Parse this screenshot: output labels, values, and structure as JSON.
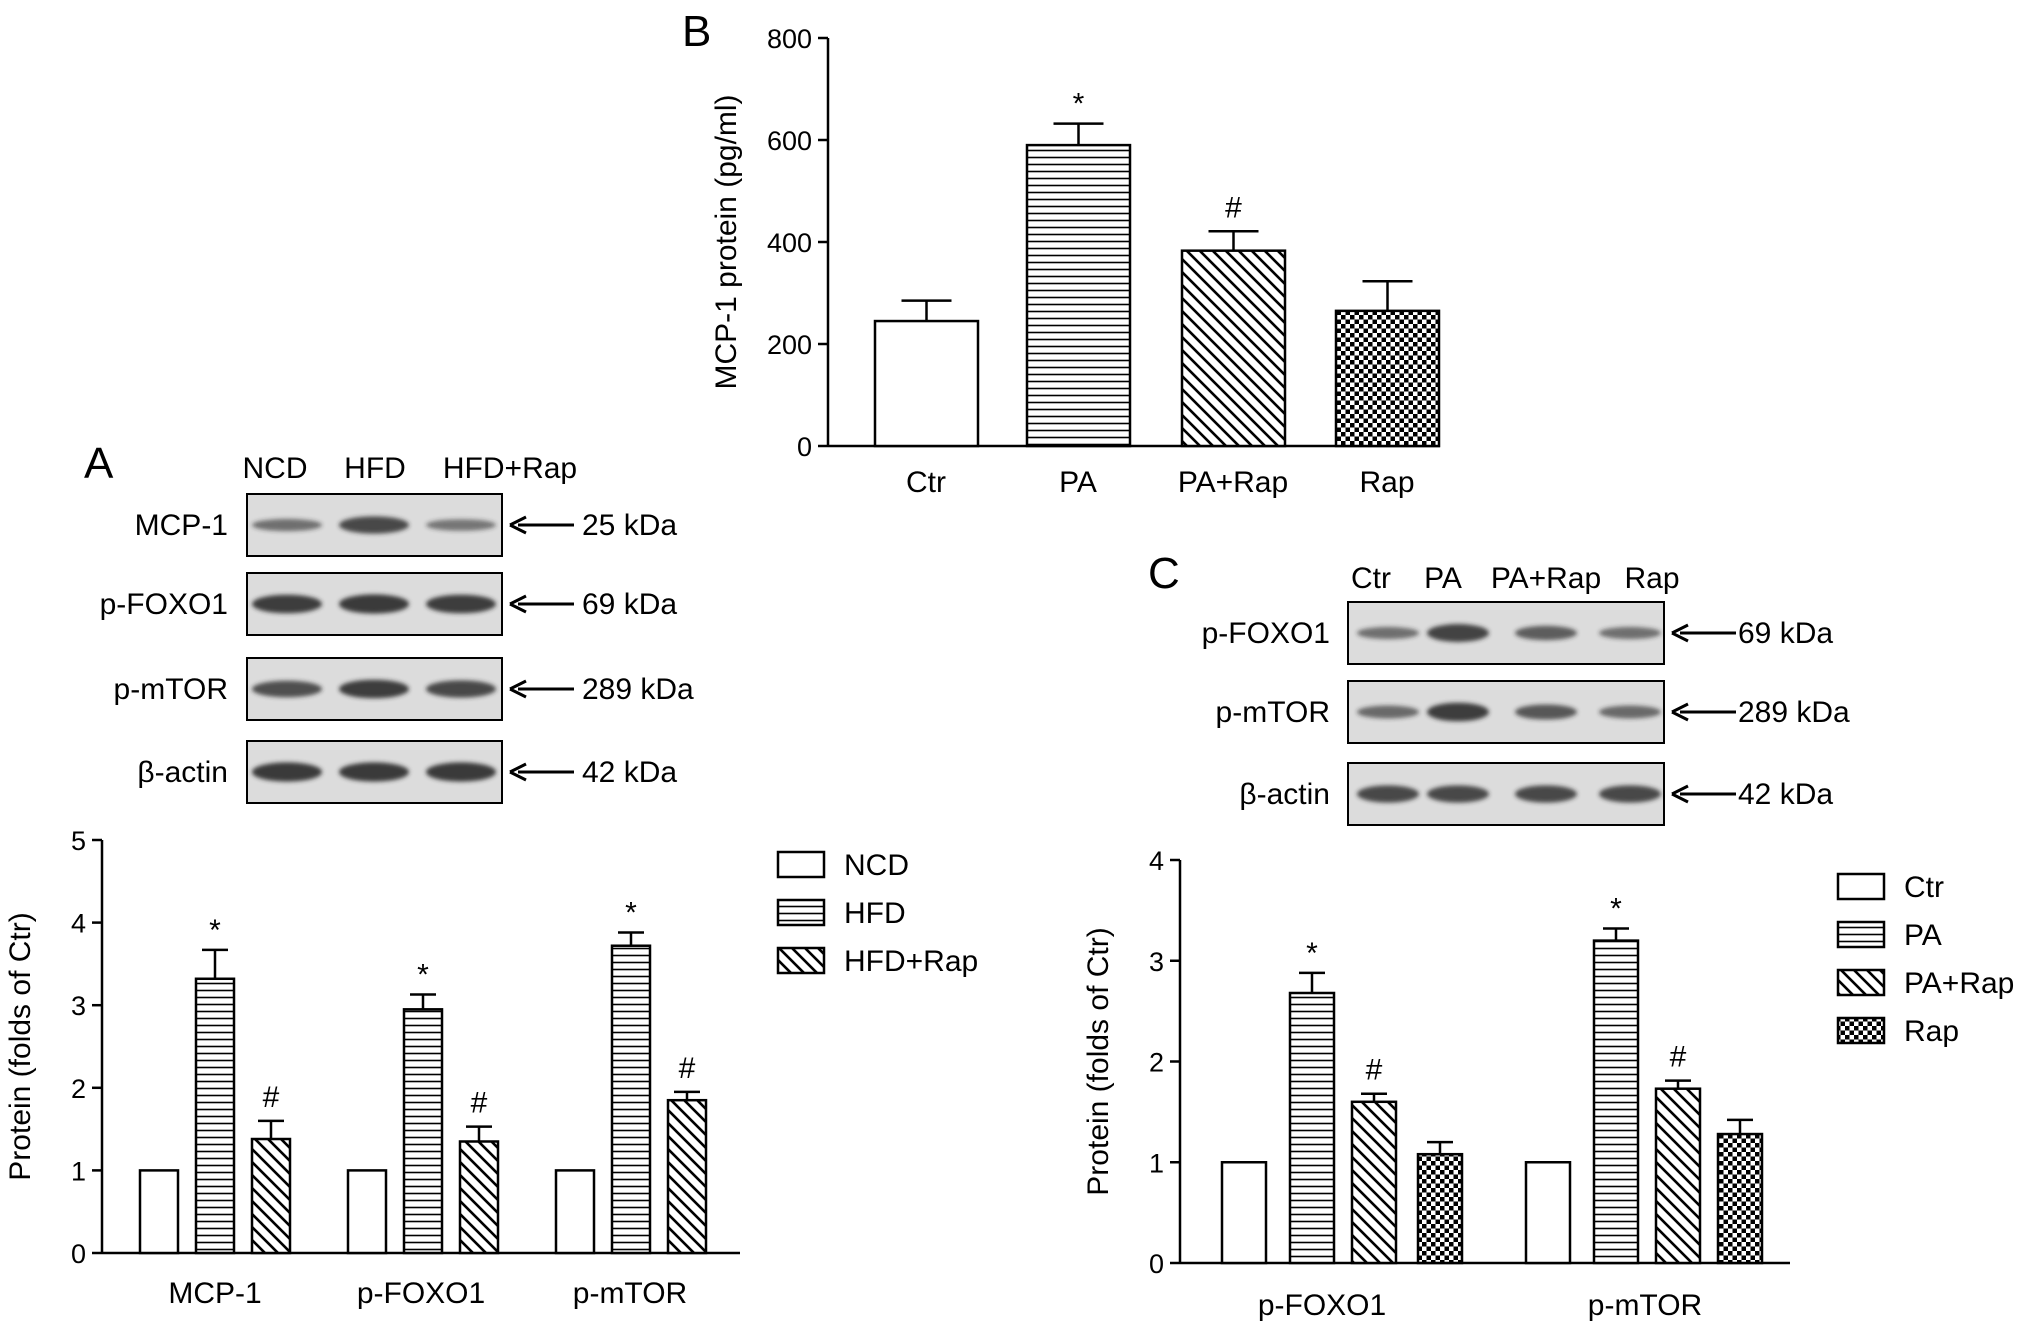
{
  "panels": {
    "A": "A",
    "B": "B",
    "C": "C"
  },
  "colors": {
    "ink": "#000000",
    "bar_fill": "#ffffff",
    "blot_bg": "#dcdcdc",
    "band": "#2a2a2a"
  },
  "blot_A": {
    "lanes": [
      "NCD",
      "HFD",
      "HFD+Rap"
    ],
    "rows": [
      {
        "name": "MCP-1",
        "kda": "25 kDa",
        "intensity": [
          0.45,
          0.8,
          0.4
        ]
      },
      {
        "name": "p-FOXO1",
        "kda": "69 kDa",
        "intensity": [
          0.9,
          0.95,
          0.9
        ]
      },
      {
        "name": "p-mTOR",
        "kda": "289 kDa",
        "intensity": [
          0.75,
          0.9,
          0.8
        ]
      },
      {
        "name": "β-actin",
        "kda": "42 kDa",
        "intensity": [
          0.95,
          0.95,
          0.95
        ]
      }
    ]
  },
  "blot_C": {
    "lanes": [
      "Ctr",
      "PA",
      "PA+Rap",
      "Rap"
    ],
    "rows": [
      {
        "name": "p-FOXO1",
        "kda": "69 kDa",
        "intensity": [
          0.45,
          0.85,
          0.6,
          0.45
        ]
      },
      {
        "name": "p-mTOR",
        "kda": "289 kDa",
        "intensity": [
          0.5,
          0.9,
          0.65,
          0.5
        ]
      },
      {
        "name": "β-actin",
        "kda": "42 kDa",
        "intensity": [
          0.8,
          0.8,
          0.8,
          0.8
        ]
      }
    ]
  },
  "chart_data": [
    {
      "panel": "B",
      "type": "bar",
      "ylabel": "MCP-1 protein (pg/ml)",
      "xlabel": "",
      "ylim": [
        0,
        800
      ],
      "yticks": [
        0,
        200,
        400,
        600,
        800
      ],
      "categories": [
        "Ctr",
        "PA",
        "PA+Rap",
        "Rap"
      ],
      "patterns": [
        "white",
        "hlines",
        "diag",
        "checker"
      ],
      "values": [
        245,
        590,
        383,
        265
      ],
      "errors": [
        40,
        42,
        38,
        58
      ],
      "annotations": [
        "",
        "*",
        "#",
        ""
      ]
    },
    {
      "panel": "A",
      "type": "bar",
      "ylabel": "Protein (folds of Ctr)",
      "xlabel": "",
      "ylim": [
        0,
        5
      ],
      "yticks": [
        0,
        1,
        2,
        3,
        4,
        5
      ],
      "categories": [
        "MCP-1",
        "p-FOXO1",
        "p-mTOR"
      ],
      "legend_position": "right",
      "series": [
        {
          "name": "NCD",
          "pattern": "white",
          "values": [
            1,
            1,
            1
          ],
          "errors": [
            0,
            0,
            0
          ],
          "annotations": [
            "",
            "",
            ""
          ]
        },
        {
          "name": "HFD",
          "pattern": "hlines",
          "values": [
            3.32,
            2.95,
            3.72
          ],
          "errors": [
            0.35,
            0.18,
            0.16
          ],
          "annotations": [
            "*",
            "*",
            "*"
          ]
        },
        {
          "name": "HFD+Rap",
          "pattern": "diag",
          "values": [
            1.38,
            1.35,
            1.85
          ],
          "errors": [
            0.22,
            0.18,
            0.1
          ],
          "annotations": [
            "#",
            "#",
            "#"
          ]
        }
      ]
    },
    {
      "panel": "C",
      "type": "bar",
      "ylabel": "Protein (folds of Ctr)",
      "xlabel": "",
      "ylim": [
        0,
        4
      ],
      "yticks": [
        0,
        1,
        2,
        3,
        4
      ],
      "categories": [
        "p-FOXO1",
        "p-mTOR"
      ],
      "legend_position": "right",
      "series": [
        {
          "name": "Ctr",
          "pattern": "white",
          "values": [
            1,
            1
          ],
          "errors": [
            0,
            0
          ],
          "annotations": [
            "",
            ""
          ]
        },
        {
          "name": "PA",
          "pattern": "hlines",
          "values": [
            2.68,
            3.2
          ],
          "errors": [
            0.2,
            0.12
          ],
          "annotations": [
            "*",
            "*"
          ]
        },
        {
          "name": "PA+Rap",
          "pattern": "diag",
          "values": [
            1.6,
            1.73
          ],
          "errors": [
            0.08,
            0.08
          ],
          "annotations": [
            "#",
            "#"
          ]
        },
        {
          "name": "Rap",
          "pattern": "checker",
          "values": [
            1.08,
            1.28
          ],
          "errors": [
            0.12,
            0.14
          ],
          "annotations": [
            "",
            ""
          ]
        }
      ]
    }
  ]
}
